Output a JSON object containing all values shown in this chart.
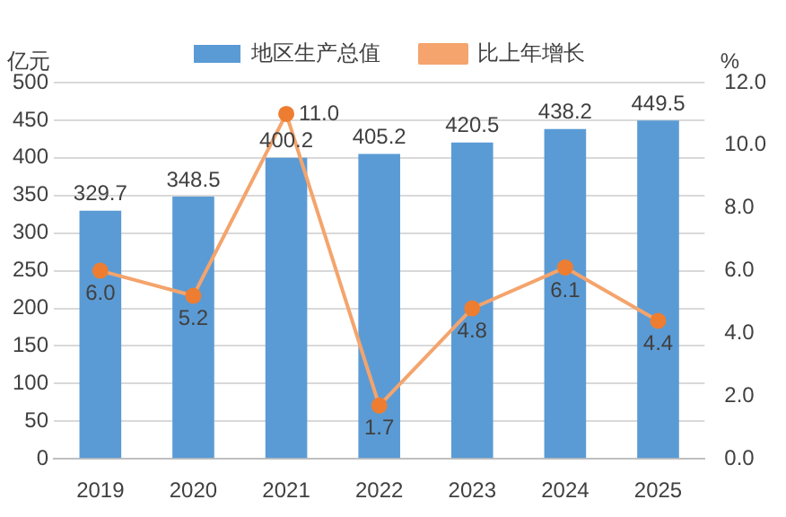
{
  "chart_data": {
    "type": "bar",
    "categories": [
      "2019",
      "2020",
      "2021",
      "2022",
      "2023",
      "2024",
      "2025"
    ],
    "series": [
      {
        "name": "地区生产总值",
        "color": "#5b9bd5",
        "values": [
          329.7,
          348.5,
          400.2,
          405.2,
          420.5,
          438.2,
          449.5
        ]
      },
      {
        "name": "比上年增长",
        "type": "line",
        "axis": "y2",
        "color": "#f4a46c",
        "marker": "circle",
        "values": [
          6.0,
          5.2,
          11.0,
          1.7,
          4.8,
          6.1,
          4.4
        ],
        "value_labels": [
          "6.0",
          "5.2",
          "11.0",
          "1.7",
          "4.8",
          "6.1",
          "4.4"
        ]
      }
    ],
    "ylabel": "亿元",
    "y2label": "%",
    "ylim": [
      0,
      500
    ],
    "yticks": [
      0,
      50,
      100,
      150,
      200,
      250,
      300,
      350,
      400,
      450,
      500
    ],
    "y2lim": [
      0,
      12
    ],
    "y2ticks": [
      {
        "value": 0,
        "label": "0.0"
      },
      {
        "value": 2,
        "label": "2.0"
      },
      {
        "value": 4,
        "label": "4.0"
      },
      {
        "value": 6,
        "label": "6.0"
      },
      {
        "value": 8,
        "label": "8.0"
      },
      {
        "value": 10,
        "label": "10.0"
      },
      {
        "value": 12,
        "label": "12.0"
      }
    ],
    "grid": "y",
    "legend": "top",
    "data_labels": true
  }
}
